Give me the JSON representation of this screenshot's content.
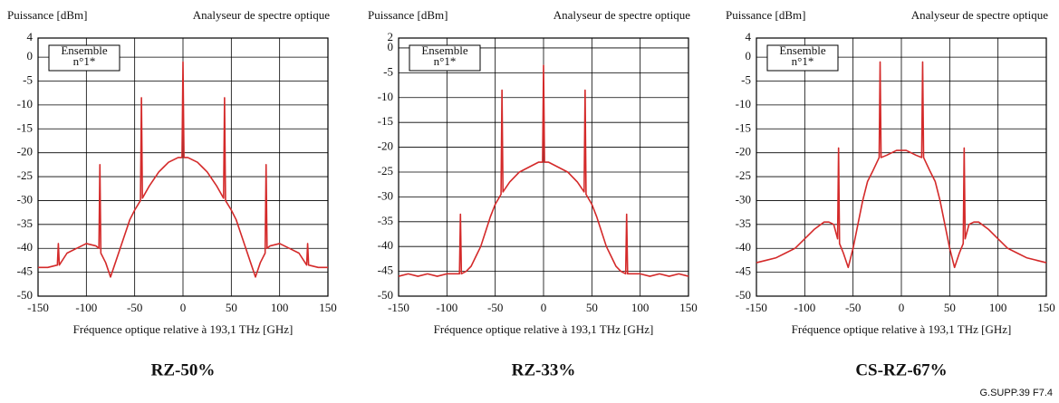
{
  "chart_data": [
    {
      "type": "line",
      "y_label": "Puissance [dBm]",
      "title": "Analyseur de spectre optique",
      "x_label": "Fréquence optique relative à 193,1 THz [GHz]",
      "caption": "RZ-50%",
      "annotation": [
        "Ensemble",
        "n°1*"
      ],
      "x": [
        -150,
        -140,
        -130,
        -129,
        -128,
        -120,
        -110,
        -100,
        -90,
        -87,
        -86,
        -85,
        -80,
        -75,
        -70,
        -65,
        -60,
        -55,
        -50,
        -44,
        -43,
        -42,
        -35,
        -30,
        -25,
        -20,
        -15,
        -10,
        -5,
        -1,
        0,
        1,
        5,
        10,
        15,
        20,
        25,
        30,
        35,
        42,
        43,
        44,
        50,
        55,
        60,
        65,
        70,
        75,
        80,
        85,
        86,
        87,
        90,
        100,
        110,
        120,
        128,
        129,
        130,
        140,
        150
      ],
      "series": [
        {
          "color": "#d42a2a",
          "values": [
            -44,
            -44,
            -43.5,
            -39,
            -43.5,
            -41,
            -40,
            -39,
            -39.5,
            -40,
            -22.5,
            -41,
            -43,
            -46,
            -43,
            -40,
            -37,
            -34,
            -32,
            -30,
            -8.5,
            -29.5,
            -27,
            -25.5,
            -24,
            -23,
            -22,
            -21.5,
            -21,
            -21,
            -1,
            -21,
            -21,
            -21.5,
            -22,
            -23,
            -24,
            -25.5,
            -27,
            -29.5,
            -8.5,
            -30,
            -32,
            -34,
            -37,
            -40,
            -43,
            -46,
            -43,
            -41,
            -22.5,
            -40,
            -39.5,
            -39,
            -40,
            -41,
            -43.5,
            -39,
            -43.5,
            -44,
            -44
          ]
        }
      ],
      "xlim": [
        -150,
        150
      ],
      "xticks": [
        -150,
        -100,
        -50,
        0,
        50,
        100,
        150
      ],
      "ylim": [
        -50,
        4
      ],
      "yticks": [
        4,
        0,
        -5,
        -10,
        -15,
        -20,
        -25,
        -30,
        -35,
        -40,
        -45,
        -50
      ],
      "grid": true
    },
    {
      "type": "line",
      "y_label": "Puissance [dBm]",
      "title": "Analyseur de spectre optique",
      "x_label": "Fréquence optique relative à 193,1 THz [GHz]",
      "caption": "RZ-33%",
      "annotation": [
        "Ensemble",
        "n°1*"
      ],
      "x": [
        -150,
        -140,
        -130,
        -120,
        -110,
        -100,
        -90,
        -87,
        -86,
        -85,
        -80,
        -75,
        -70,
        -65,
        -60,
        -55,
        -50,
        -44,
        -43,
        -42,
        -35,
        -30,
        -25,
        -20,
        -15,
        -10,
        -5,
        -1,
        0,
        1,
        5,
        10,
        15,
        20,
        25,
        30,
        35,
        42,
        43,
        44,
        50,
        55,
        60,
        65,
        70,
        75,
        80,
        85,
        86,
        87,
        90,
        100,
        110,
        120,
        130,
        140,
        150
      ],
      "series": [
        {
          "color": "#d42a2a",
          "values": [
            -46,
            -45.5,
            -46,
            -45.5,
            -46,
            -45.5,
            -45.5,
            -45.5,
            -33.5,
            -45.5,
            -45,
            -44,
            -42,
            -40,
            -37,
            -34,
            -31.5,
            -29.5,
            -8.5,
            -29,
            -27,
            -26,
            -25,
            -24.5,
            -24,
            -23.5,
            -23,
            -23,
            -3.5,
            -23,
            -23,
            -23.5,
            -24,
            -24.5,
            -25,
            -26,
            -27,
            -29,
            -8.5,
            -29.5,
            -31.5,
            -34,
            -37,
            -40,
            -42,
            -44,
            -45,
            -45.5,
            -33.5,
            -45.5,
            -45.5,
            -45.5,
            -46,
            -45.5,
            -46,
            -45.5,
            -46
          ]
        }
      ],
      "xlim": [
        -150,
        150
      ],
      "xticks": [
        -150,
        -100,
        -50,
        0,
        50,
        100,
        150
      ],
      "ylim": [
        -50,
        2
      ],
      "yticks": [
        2,
        0,
        -5,
        -10,
        -15,
        -20,
        -25,
        -30,
        -35,
        -40,
        -45,
        -50
      ],
      "grid": true
    },
    {
      "type": "line",
      "y_label": "Puissance [dBm]",
      "title": "Analyseur de spectre optique",
      "x_label": "Fréquence optique relative à 193,1 THz [GHz]",
      "caption": "CS-RZ-67%",
      "annotation": [
        "Ensemble",
        "n°1*"
      ],
      "x": [
        -150,
        -140,
        -130,
        -120,
        -110,
        -100,
        -90,
        -80,
        -75,
        -70,
        -66,
        -65,
        -64,
        -60,
        -55,
        -50,
        -45,
        -40,
        -35,
        -30,
        -23,
        -22,
        -21,
        -15,
        -10,
        -5,
        0,
        5,
        10,
        15,
        21,
        22,
        23,
        30,
        35,
        40,
        45,
        50,
        55,
        60,
        64,
        65,
        66,
        70,
        75,
        80,
        90,
        100,
        110,
        120,
        130,
        140,
        150
      ],
      "series": [
        {
          "color": "#d42a2a",
          "values": [
            -43,
            -42.5,
            -42,
            -41,
            -40,
            -38,
            -36,
            -34.5,
            -34.5,
            -35,
            -38,
            -19,
            -39,
            -41,
            -44,
            -40,
            -35,
            -30,
            -26,
            -24,
            -21,
            -1,
            -21,
            -20.5,
            -20,
            -19.5,
            -19.5,
            -19.5,
            -20,
            -20.5,
            -21,
            -1,
            -21,
            -24,
            -26,
            -30,
            -35,
            -40,
            -44,
            -41,
            -39,
            -19,
            -38,
            -35,
            -34.5,
            -34.5,
            -36,
            -38,
            -40,
            -41,
            -42,
            -42.5,
            -43
          ]
        }
      ],
      "xlim": [
        -150,
        150
      ],
      "xticks": [
        -150,
        -100,
        -50,
        0,
        50,
        100,
        150
      ],
      "ylim": [
        -50,
        4
      ],
      "yticks": [
        4,
        0,
        -5,
        -10,
        -15,
        -20,
        -25,
        -30,
        -35,
        -40,
        -45,
        -50
      ],
      "grid": true
    }
  ],
  "footer": "G.SUPP.39 F7.4"
}
